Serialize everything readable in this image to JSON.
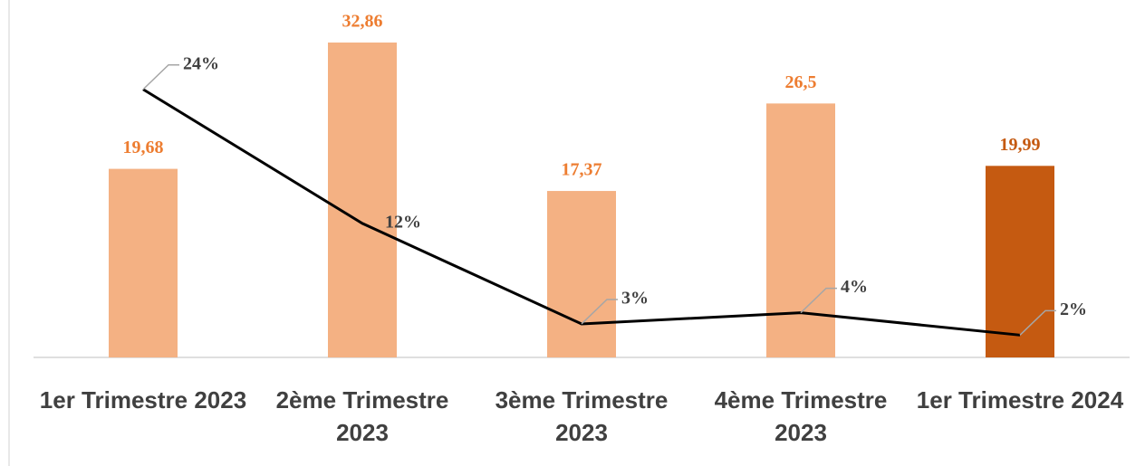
{
  "chart_data": {
    "type": "bar-line",
    "categories": [
      "1er Trimestre 2023",
      "2ème Trimestre 2023",
      "3ème Trimestre 2023",
      "4ème Trimestre 2023",
      "1er Trimestre 2024"
    ],
    "series": [
      {
        "type": "bar",
        "colors": [
          "#f4b183",
          "#f4b183",
          "#f4b183",
          "#f4b183",
          "#c55a11"
        ],
        "values": [
          19.68,
          32.86,
          17.37,
          26.5,
          19.99
        ],
        "value_labels": [
          "19,68",
          "32,86",
          "17,37",
          "26,5",
          "19,99"
        ]
      },
      {
        "type": "line",
        "axis": "y2",
        "color": "#000000",
        "values": [
          24,
          12,
          3,
          4,
          2
        ],
        "value_labels": [
          "24%",
          "12%",
          "3%",
          "4%",
          "2%"
        ]
      }
    ],
    "ylim": [
      0,
      37.3
    ],
    "y2lim": [
      0,
      32
    ]
  }
}
